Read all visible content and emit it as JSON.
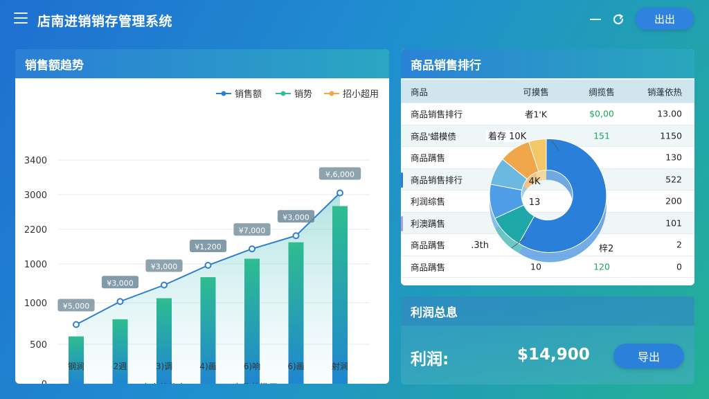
{
  "app": {
    "title": "店南进销销存管理系统",
    "logout_label": "出出"
  },
  "trend": {
    "title": "销售额趋势",
    "legend": [
      "销售额",
      "销势",
      "招小超用"
    ],
    "bottom_legend": [
      "商商状趋鬼",
      "商品状揽用"
    ],
    "y_ticks": [
      "0",
      "500",
      "1000",
      "1000",
      "2200",
      "3000",
      "3400"
    ],
    "categories": [
      "钢涧",
      "2週",
      "3)调",
      "4)画",
      "6)响",
      "6)画",
      "射涧"
    ],
    "point_labels": [
      "¥5,000",
      "¥3,000",
      "¥3,000",
      "¥1,200",
      "¥7,000",
      "¥3,000",
      "¥,6,000"
    ],
    "colors": {
      "line": "#2f7fd0",
      "bar_top": "#2ebd8f",
      "bar_bottom": "#1f86d0"
    }
  },
  "chart_data": {
    "type": "bar",
    "title": "销售额趋势",
    "categories": [
      "钢涧",
      "2週",
      "3)调",
      "4)画",
      "6)响",
      "6)画",
      "射涧"
    ],
    "series": [
      {
        "name": "销售额",
        "kind": "bar",
        "values": [
          720,
          980,
          1300,
          1620,
          1900,
          2150,
          2700
        ]
      },
      {
        "name": "销势",
        "kind": "line",
        "values": [
          900,
          1250,
          1500,
          1800,
          2050,
          2250,
          2900
        ]
      }
    ],
    "ylim": [
      0,
      3400
    ]
  },
  "ranking": {
    "title": "商品销售排行",
    "headers": [
      "商品",
      "可摸售",
      "绸揽售",
      "销蓬依热"
    ],
    "rows": [
      [
        "商品销售排行",
        "者1'K",
        "$0,00",
        "13.00"
      ],
      [
        "商品'蜡模债",
        "",
        "151",
        "1150"
      ],
      [
        "商品蹒售",
        "",
        "",
        "130"
      ],
      [
        "商品销售排行",
        "",
        "",
        "522"
      ],
      [
        "利润综售",
        "",
        "",
        "200"
      ],
      [
        "利澳蹒售",
        "",
        "",
        "101"
      ],
      [
        "商品蹒售",
        "",
        "",
        "2"
      ],
      [
        "商品蹒售",
        "10",
        "120",
        "0"
      ]
    ],
    "donut_labels": [
      "着存 10K",
      "4K",
      "13",
      "祥2.3th",
      "梓2"
    ],
    "donut_slices": [
      {
        "value": 58,
        "color": "#2a7fd8"
      },
      {
        "value": 10,
        "color": "#1fa8a8"
      },
      {
        "value": 10,
        "color": "#4d9ee6"
      },
      {
        "value": 8,
        "color": "#6bb8e0"
      },
      {
        "value": 9,
        "color": "#f0a64a"
      },
      {
        "value": 5,
        "color": "#f3c768"
      }
    ]
  },
  "profit": {
    "title": "利润总息",
    "label": "利润:",
    "value": "$14,900",
    "export_label": "导出"
  }
}
